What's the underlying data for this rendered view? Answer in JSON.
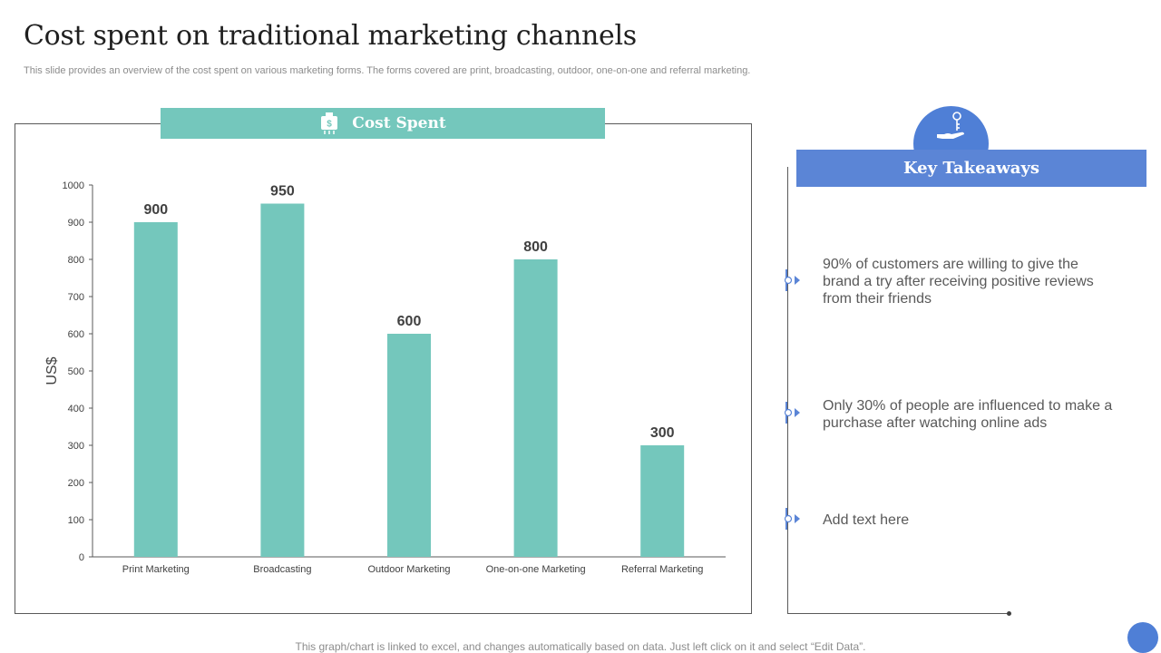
{
  "slide": {
    "title": "Cost spent on traditional marketing channels",
    "subtitle": "This slide provides an overview of the cost spent on various marketing forms. The forms covered are print, broadcasting, outdoor, one-on-one and referral marketing.",
    "footer_note": "This graph/chart is linked to excel,  and changes automatically based on data. Just left click on it and select “Edit Data”."
  },
  "chart_header": {
    "title": "Cost Spent",
    "icon": "money-bag-icon"
  },
  "chart_data": {
    "type": "bar",
    "categories": [
      "Print Marketing",
      "Broadcasting",
      "Outdoor Marketing",
      "One-on-one Marketing",
      "Referral Marketing"
    ],
    "values": [
      900,
      950,
      600,
      800,
      300
    ],
    "ylabel": "US$",
    "xlabel": "",
    "ylim": [
      0,
      1000
    ],
    "yticks": [
      0,
      100,
      200,
      300,
      400,
      500,
      600,
      700,
      800,
      900,
      1000
    ],
    "data_labels": true,
    "grid": false,
    "bar_color": "#74c7bc"
  },
  "key_takeaways": {
    "title": "Key Takeaways",
    "icon": "hand-holding-key-icon",
    "items": [
      "90% of customers are willing to give the brand a try  after receiving positive reviews from their friends",
      "Only  30% of people are influenced  to make a purchase after watching online ads",
      "Add text here"
    ]
  },
  "colors": {
    "teal": "#74c7bc",
    "blue": "#5b85d6",
    "text": "#595959"
  }
}
